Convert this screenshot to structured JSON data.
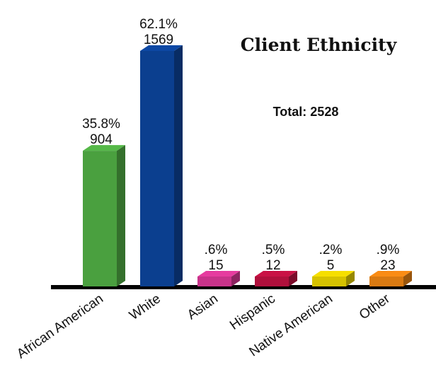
{
  "chart_data": {
    "type": "bar3d",
    "title": "Client Ethnicity",
    "subtitle": "Total: 2528",
    "categories": [
      "African American",
      "White",
      "Asian",
      "Hispanic",
      "Native American",
      "Other"
    ],
    "values": [
      904,
      1569,
      15,
      12,
      5,
      23
    ],
    "percent_labels": [
      "35.8%",
      "62.1%",
      ".6%",
      ".5%",
      ".2%",
      ".9%"
    ],
    "colors": [
      "#4aa03f",
      "#0b3f8f",
      "#c8338a",
      "#b0103c",
      "#d6c200",
      "#d97a12"
    ],
    "ylim": [
      0,
      1569
    ]
  }
}
